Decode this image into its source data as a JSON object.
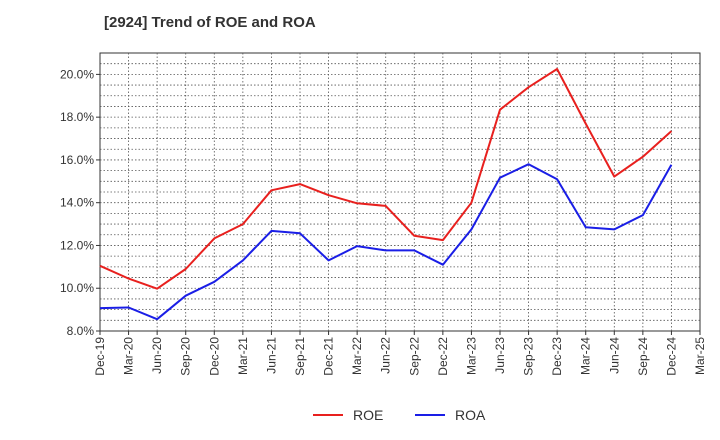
{
  "chart_data": {
    "type": "line",
    "title": "[2924]  Trend of ROE and ROA",
    "xlabel": "",
    "ylabel": "",
    "x": [
      "Dec-19",
      "Mar-20",
      "Jun-20",
      "Sep-20",
      "Dec-20",
      "Mar-21",
      "Jun-21",
      "Sep-21",
      "Dec-21",
      "Mar-22",
      "Jun-22",
      "Sep-22",
      "Dec-22",
      "Mar-23",
      "Jun-23",
      "Sep-23",
      "Dec-23",
      "Mar-24",
      "Jun-24",
      "Sep-24",
      "Dec-24",
      "Mar-25"
    ],
    "ylim": [
      8.0,
      21.0
    ],
    "yticks": [
      8.0,
      10.0,
      12.0,
      14.0,
      16.0,
      18.0,
      20.0
    ],
    "ytick_labels": [
      "8.0%",
      "10.0%",
      "12.0%",
      "14.0%",
      "16.0%",
      "18.0%",
      "20.0%"
    ],
    "grid": true,
    "legend_position": "bottom-center",
    "series": [
      {
        "name": "ROE",
        "color": "#e8201e",
        "values": [
          11.05,
          10.45,
          9.98,
          10.9,
          12.33,
          13.0,
          14.58,
          14.87,
          14.35,
          13.97,
          13.85,
          12.45,
          12.25,
          14.0,
          18.35,
          19.4,
          20.25,
          17.7,
          15.22,
          16.15,
          17.35,
          null
        ]
      },
      {
        "name": "ROA",
        "color": "#1a1ee6",
        "values": [
          9.07,
          9.1,
          8.55,
          9.65,
          10.3,
          11.3,
          12.68,
          12.57,
          11.3,
          11.97,
          11.77,
          11.77,
          11.1,
          12.75,
          15.17,
          15.8,
          15.1,
          12.85,
          12.75,
          13.42,
          15.77,
          null
        ]
      }
    ]
  }
}
